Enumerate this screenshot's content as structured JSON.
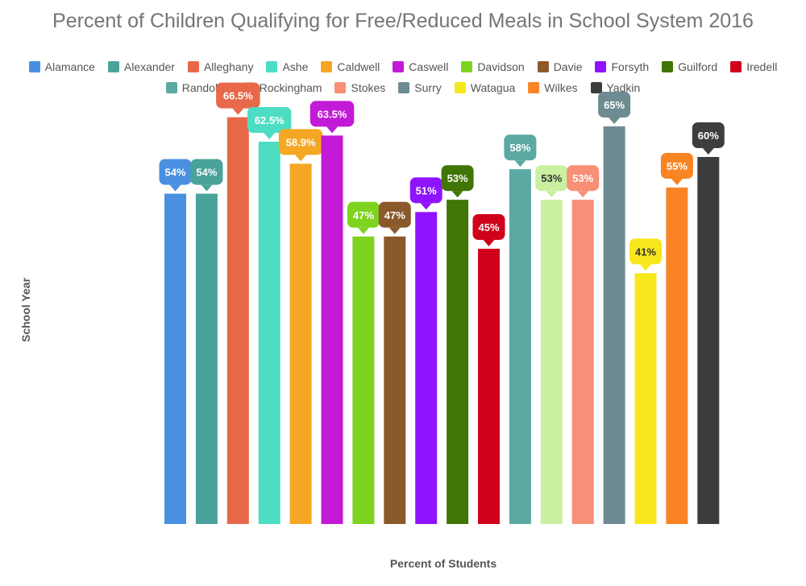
{
  "chart_data": {
    "type": "bar",
    "title": "Percent of Children Qualifying for Free/Reduced Meals in School System 2016",
    "xlabel": "Percent of Students",
    "ylabel": "School Year",
    "ylim": [
      0,
      70
    ],
    "grid": false,
    "legend_position": "top",
    "categories": [
      "Alamance",
      "Alexander",
      "Alleghany",
      "Ashe",
      "Caldwell",
      "Caswell",
      "Davidson",
      "Davie",
      "Forsyth",
      "Guilford",
      "Iredell",
      "Randolph",
      "Rockingham",
      "Stokes",
      "Surry",
      "Watagua",
      "Wilkes",
      "Yadkin"
    ],
    "values": [
      54,
      54,
      66.5,
      62.5,
      58.9,
      63.5,
      47,
      47,
      51,
      53,
      45,
      58,
      53,
      53,
      65,
      41,
      55,
      60
    ],
    "data_labels": [
      "54%",
      "54%",
      "66.5%",
      "62.5%",
      "58.9%",
      "63.5%",
      "47%",
      "47%",
      "51%",
      "53%",
      "45%",
      "58%",
      "53%",
      "53%",
      "65%",
      "41%",
      "55%",
      "60%"
    ],
    "colors": [
      "#4a90e2",
      "#4aa39a",
      "#e8694a",
      "#4dddc3",
      "#f5a623",
      "#c21ad6",
      "#7ed321",
      "#8b5a2b",
      "#9013fe",
      "#417505",
      "#d0021b",
      "#5aa9a3",
      "#c9f0a0",
      "#f98f77",
      "#6e8b92",
      "#f8e71c",
      "#f98424",
      "#3d3d3d"
    ],
    "label_text_colors": [
      "#ffffff",
      "#ffffff",
      "#ffffff",
      "#ffffff",
      "#ffffff",
      "#ffffff",
      "#ffffff",
      "#ffffff",
      "#ffffff",
      "#ffffff",
      "#ffffff",
      "#ffffff",
      "#333333",
      "#ffffff",
      "#ffffff",
      "#333333",
      "#ffffff",
      "#ffffff"
    ]
  }
}
